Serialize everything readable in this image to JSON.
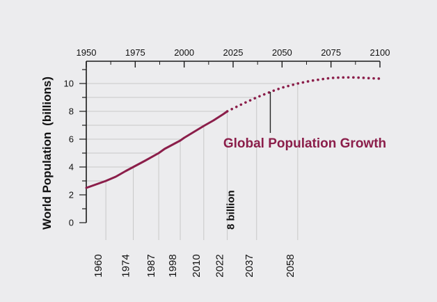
{
  "chart_data": {
    "type": "line",
    "title": "",
    "ylabel_bold": "World Population",
    "ylabel_unit": "(billions)",
    "xlim": [
      1950,
      2100
    ],
    "ylim": [
      0,
      11
    ],
    "x_ticks": [
      "1950",
      "1975",
      "2000",
      "2025",
      "2050",
      "2075",
      "2100"
    ],
    "y_ticks": [
      "0",
      "2",
      "4",
      "6",
      "8",
      "10"
    ],
    "grid": false,
    "series": [
      {
        "style": "solid",
        "x": [
          1950,
          1955,
          1960,
          1965,
          1970,
          1974,
          1980,
          1987,
          1990,
          1998,
          2000,
          2010,
          2015,
          2020,
          2022
        ],
        "y": [
          2.5,
          2.75,
          3.0,
          3.3,
          3.7,
          4.0,
          4.45,
          5.0,
          5.3,
          5.9,
          6.1,
          6.95,
          7.35,
          7.8,
          8.0
        ]
      },
      {
        "style": "dotted",
        "x": [
          2022,
          2030,
          2037,
          2045,
          2050,
          2058,
          2065,
          2070,
          2075,
          2080,
          2085,
          2090,
          2095,
          2100
        ],
        "y": [
          8.0,
          8.55,
          9.0,
          9.45,
          9.7,
          10.0,
          10.2,
          10.3,
          10.4,
          10.43,
          10.44,
          10.42,
          10.38,
          10.35
        ]
      }
    ],
    "milestones": [
      {
        "year": "1960",
        "value": 3
      },
      {
        "year": "1974",
        "value": 4
      },
      {
        "year": "1987",
        "value": 5
      },
      {
        "year": "1998",
        "value": 6
      },
      {
        "year": "2010",
        "value": 7
      },
      {
        "year": "2022",
        "value": 8
      },
      {
        "year": "2037",
        "value": 9
      },
      {
        "year": "2058",
        "value": 10
      }
    ],
    "milestone_highlight": "8 billion",
    "annotation": {
      "text": "Global Population Growth",
      "x": 2044,
      "y": 9.4
    },
    "colors": {
      "line": "#8b1e4a",
      "guide": "#c8c8c8",
      "axis": "#1a1a1a",
      "background": "#ececee"
    }
  }
}
